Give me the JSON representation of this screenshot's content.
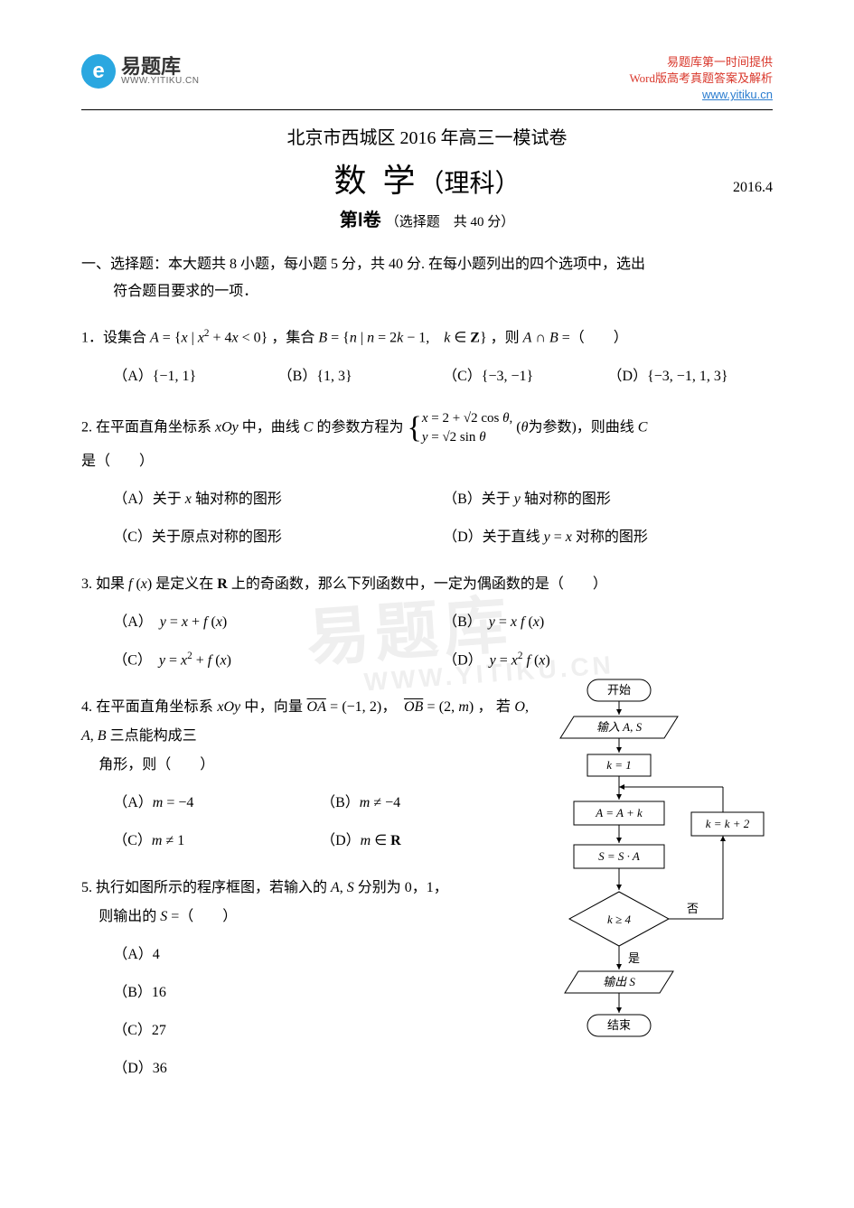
{
  "header": {
    "logo_letter": "e",
    "logo_cn": "易题库",
    "logo_url": "WWW.YITIKU.CN",
    "right_line1": "易题库第一时间提供",
    "right_line2": "Word版高考真题答案及解析",
    "right_line3": "www.yitiku.cn"
  },
  "titles": {
    "pretitle": "北京市西城区 2016 年高三一模试卷",
    "main_a": "数",
    "main_b": "学",
    "main_c": "（理科）",
    "date": "2016.4",
    "part_label": "第Ⅰ卷",
    "part_note": "（选择题　共 40 分）"
  },
  "section1": {
    "instr_l1": "一、选择题：本大题共 8 小题，每小题 5 分，共 40 分. 在每小题列出的四个选项中，选出",
    "instr_l2": "符合题目要求的一项．"
  },
  "q1": {
    "stem": "1．设集合 <span class='ital'>A</span> = {<span class='ital'>x</span> | <span class='ital'>x</span><sup>2</sup> + 4<span class='ital'>x</span> &lt; 0} ，集合 <span class='ital'>B</span> = {<span class='ital'>n</span> | <span class='ital'>n</span> = 2<span class='ital'>k</span> − 1,　<span class='ital'>k</span> ∈ <span class='bold rm'>Z</span>} ，则 <span class='ital'>A</span> ∩ <span class='ital'>B</span> =（　　）",
    "a": "（A）{−1, 1}",
    "b": "（B）{1, 3}",
    "c": "（C）{−3, −1}",
    "d": "（D）{−3, −1, 1, 3}"
  },
  "q2": {
    "stem_pre": "2. 在平面直角坐标系 <span class='ital'>xOy</span> 中，曲线 <span class='ital'>C</span> 的参数方程为 ",
    "case1": "<span class='ital'>x</span> = 2 + √2 cos <span class='ital'>θ</span>,",
    "case2": "<span class='ital'>y</span> = √2 sin <span class='ital'>θ</span>",
    "stem_post": "(<span class='ital'>θ</span>为参数)，则曲线 <span class='ital'>C</span>",
    "stem_line2": "是（　　）",
    "a": "（A）关于 <span class='ital'>x</span> 轴对称的图形",
    "b": "（B）关于 <span class='ital'>y</span> 轴对称的图形",
    "c": "（C）关于原点对称的图形",
    "d": "（D）关于直线 <span class='ital'>y</span> = <span class='ital'>x</span> 对称的图形"
  },
  "q3": {
    "stem": "3. 如果 <span class='ital'>f</span> (<span class='ital'>x</span>) 是定义在 <span class='bold rm'>R</span> 上的奇函数，那么下列函数中，一定为偶函数的是（　　）",
    "a": "（A）　<span class='ital'>y</span> = <span class='ital'>x</span> + <span class='ital'>f</span> (<span class='ital'>x</span>)",
    "b": "（B）　<span class='ital'>y</span> = <span class='ital'>x f</span> (<span class='ital'>x</span>)",
    "c": "（C）　<span class='ital'>y</span> = <span class='ital'>x</span><sup>2</sup> + <span class='ital'>f</span> (<span class='ital'>x</span>)",
    "d": "（D）　<span class='ital'>y</span> = <span class='ital'>x</span><sup>2</sup> <span class='ital'>f</span> (<span class='ital'>x</span>)"
  },
  "q4": {
    "stem_l1": "4. 在平面直角坐标系 <span class='ital'>xOy</span> 中，向量 <span class='ital vec'>OA</span> = (−1, 2)，　<span class='ital vec'>OB</span> = (2, <span class='ital'>m</span>) ， 若 <span class='ital'>O</span>, <span class='ital'>A</span>, <span class='ital'>B</span> 三点能构成三",
    "stem_l2": "角形，则（　　）",
    "a": "（A）<span class='ital'>m</span> = −4",
    "b": "（B）<span class='ital'>m</span> ≠ −4",
    "c": "（C）<span class='ital'>m</span> ≠ 1",
    "d": "（D）<span class='ital'>m</span> ∈ <span class='bold rm'>R</span>"
  },
  "q5": {
    "stem_l1": "5. 执行如图所示的程序框图，若输入的 <span class='ital'>A</span>, <span class='ital'>S</span> 分别为 0，1，",
    "stem_l2": "则输出的 <span class='ital'>S</span> =（　　）",
    "a": "（A）4",
    "b": "（B）16",
    "c": "（C）27",
    "d": "（D）36"
  },
  "flowchart": {
    "start": "开始",
    "input": "输入 A, S",
    "init": "k = 1",
    "step1": "A = A + k",
    "step2": "S = S · A",
    "cond": "k ≥ 4",
    "yes": "是",
    "no": "否",
    "update": "k = k + 2",
    "output": "输出 S",
    "end": "结束",
    "box_stroke": "#000000",
    "box_fill": "#ffffff",
    "line_color": "#000000",
    "font_size": 13
  },
  "watermark": {
    "text": "易题库",
    "url": "WWW.YITIKU.CN"
  },
  "colors": {
    "logo_bg": "#2aa7e0",
    "red": "#d9372b",
    "link": "#2a7ccf",
    "wm": "#efefef"
  }
}
